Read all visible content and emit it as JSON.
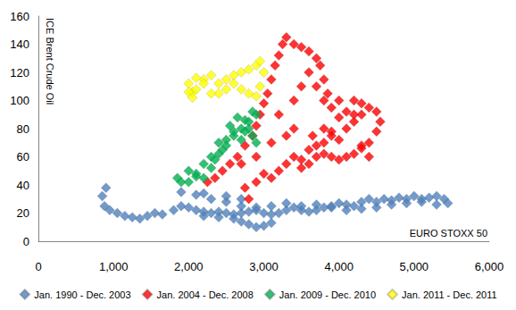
{
  "chart_data": {
    "type": "scatter",
    "x_label": "EURO STOXX 50",
    "y_label": "ICE Brent Crude Oil",
    "xlim": [
      0,
      6000
    ],
    "xticks": [
      0,
      1000,
      2000,
      3000,
      4000,
      5000,
      6000
    ],
    "ylim": [
      0,
      160
    ],
    "yticks": [
      0,
      20,
      40,
      60,
      80,
      100,
      120,
      140,
      160
    ],
    "grid": false,
    "legend": "bottom",
    "marker": "diamond",
    "series": [
      {
        "name": "Jan. 1990 - Dec. 2003",
        "color": "#4f81bd",
        "values": [
          [
            900,
            38
          ],
          [
            850,
            32
          ],
          [
            880,
            25
          ],
          [
            950,
            22
          ],
          [
            1050,
            20
          ],
          [
            1150,
            18
          ],
          [
            1250,
            17
          ],
          [
            1350,
            16
          ],
          [
            1450,
            18
          ],
          [
            1550,
            20
          ],
          [
            1650,
            19
          ],
          [
            1800,
            22
          ],
          [
            1900,
            25
          ],
          [
            2000,
            24
          ],
          [
            2100,
            22
          ],
          [
            2200,
            21
          ],
          [
            2300,
            20
          ],
          [
            2400,
            21
          ],
          [
            2500,
            20
          ],
          [
            2600,
            19
          ],
          [
            2700,
            20
          ],
          [
            2800,
            21
          ],
          [
            2900,
            22
          ],
          [
            3000,
            20
          ],
          [
            3100,
            19
          ],
          [
            3200,
            20
          ],
          [
            3300,
            22
          ],
          [
            3400,
            24
          ],
          [
            3500,
            22
          ],
          [
            3600,
            21
          ],
          [
            3700,
            22
          ],
          [
            3800,
            24
          ],
          [
            3900,
            25
          ],
          [
            4000,
            27
          ],
          [
            4100,
            26
          ],
          [
            4200,
            25
          ],
          [
            4300,
            28
          ],
          [
            4400,
            30
          ],
          [
            4500,
            28
          ],
          [
            4600,
            30
          ],
          [
            4700,
            29
          ],
          [
            4800,
            31
          ],
          [
            4900,
            30
          ],
          [
            5000,
            32
          ],
          [
            5100,
            30
          ],
          [
            5200,
            31
          ],
          [
            5300,
            32
          ],
          [
            5400,
            30
          ],
          [
            5450,
            27
          ],
          [
            5300,
            26
          ],
          [
            5100,
            28
          ],
          [
            4900,
            27
          ],
          [
            4700,
            26
          ],
          [
            4500,
            24
          ],
          [
            4300,
            23
          ],
          [
            4100,
            22
          ],
          [
            3900,
            24
          ],
          [
            3700,
            26
          ],
          [
            3500,
            25
          ],
          [
            3300,
            27
          ],
          [
            3100,
            25
          ],
          [
            2900,
            24
          ],
          [
            2700,
            25
          ],
          [
            2500,
            28
          ],
          [
            2300,
            30
          ],
          [
            2100,
            33
          ],
          [
            1900,
            35
          ],
          [
            2200,
            34
          ],
          [
            2500,
            32
          ],
          [
            2700,
            30
          ],
          [
            2800,
            12
          ],
          [
            2900,
            10
          ],
          [
            3000,
            11
          ],
          [
            3100,
            13
          ],
          [
            2700,
            14
          ],
          [
            2600,
            16
          ],
          [
            2400,
            17
          ],
          [
            2200,
            18
          ]
        ]
      },
      {
        "name": "Jan. 2004 - Dec. 2008",
        "color": "#ff0000",
        "values": [
          [
            2800,
            30
          ],
          [
            2750,
            38
          ],
          [
            2900,
            42
          ],
          [
            3000,
            48
          ],
          [
            3100,
            45
          ],
          [
            3200,
            50
          ],
          [
            3300,
            55
          ],
          [
            3400,
            60
          ],
          [
            3500,
            58
          ],
          [
            3600,
            65
          ],
          [
            3700,
            68
          ],
          [
            3800,
            70
          ],
          [
            3900,
            75
          ],
          [
            4000,
            72
          ],
          [
            4100,
            80
          ],
          [
            4200,
            85
          ],
          [
            4300,
            90
          ],
          [
            4400,
            95
          ],
          [
            4500,
            92
          ],
          [
            4550,
            85
          ],
          [
            4500,
            78
          ],
          [
            4400,
            70
          ],
          [
            4300,
            66
          ],
          [
            4200,
            62
          ],
          [
            4100,
            60
          ],
          [
            4000,
            58
          ],
          [
            3900,
            60
          ],
          [
            3800,
            62
          ],
          [
            3700,
            60
          ],
          [
            3600,
            55
          ],
          [
            3500,
            52
          ],
          [
            3650,
            75
          ],
          [
            3800,
            80
          ],
          [
            3900,
            78
          ],
          [
            4000,
            88
          ],
          [
            4100,
            92
          ],
          [
            4200,
            90
          ],
          [
            4300,
            68
          ],
          [
            4400,
            60
          ],
          [
            3900,
            95
          ],
          [
            3850,
            105
          ],
          [
            3800,
            115
          ],
          [
            3750,
            125
          ],
          [
            3700,
            130
          ],
          [
            3600,
            135
          ],
          [
            3500,
            138
          ],
          [
            3400,
            140
          ],
          [
            3300,
            145
          ],
          [
            3250,
            140
          ],
          [
            3200,
            132
          ],
          [
            3150,
            125
          ],
          [
            3100,
            115
          ],
          [
            3050,
            105
          ],
          [
            3000,
            98
          ],
          [
            2950,
            90
          ],
          [
            2900,
            82
          ],
          [
            2850,
            75
          ],
          [
            2750,
            68
          ],
          [
            2650,
            60
          ],
          [
            2550,
            55
          ],
          [
            2450,
            50
          ],
          [
            2350,
            45
          ],
          [
            2250,
            42
          ],
          [
            2700,
            55
          ],
          [
            2900,
            60
          ],
          [
            3100,
            70
          ],
          [
            3300,
            75
          ],
          [
            3400,
            80
          ],
          [
            3200,
            90
          ],
          [
            3400,
            100
          ],
          [
            3500,
            110
          ],
          [
            3600,
            120
          ],
          [
            3700,
            110
          ],
          [
            3800,
            100
          ],
          [
            4000,
            100
          ],
          [
            4200,
            100
          ],
          [
            4300,
            98
          ]
        ]
      },
      {
        "name": "Jan. 2009 - Dec. 2010",
        "color": "#00b050",
        "values": [
          [
            1850,
            45
          ],
          [
            1900,
            42
          ],
          [
            2000,
            50
          ],
          [
            2100,
            48
          ],
          [
            2200,
            55
          ],
          [
            2300,
            60
          ],
          [
            2400,
            70
          ],
          [
            2450,
            65
          ],
          [
            2500,
            72
          ],
          [
            2600,
            78
          ],
          [
            2700,
            80
          ],
          [
            2750,
            86
          ],
          [
            2800,
            85
          ],
          [
            2850,
            92
          ],
          [
            2900,
            90
          ],
          [
            2850,
            75
          ],
          [
            2700,
            72
          ],
          [
            2600,
            75
          ],
          [
            2500,
            68
          ],
          [
            2300,
            52
          ],
          [
            2100,
            46
          ],
          [
            2000,
            42
          ],
          [
            2200,
            45
          ],
          [
            2400,
            62
          ],
          [
            2800,
            80
          ],
          [
            2900,
            70
          ],
          [
            2750,
            78
          ],
          [
            2650,
            88
          ],
          [
            2550,
            82
          ],
          [
            2350,
            58
          ]
        ]
      },
      {
        "name": "Jan. 2011 - Dec. 2011",
        "color": "#ffff00",
        "values": [
          [
            2000,
            112
          ],
          [
            2050,
            106
          ],
          [
            2100,
            108
          ],
          [
            2200,
            115
          ],
          [
            2300,
            118
          ],
          [
            2400,
            112
          ],
          [
            2500,
            115
          ],
          [
            2600,
            118
          ],
          [
            2700,
            120
          ],
          [
            2800,
            122
          ],
          [
            2900,
            125
          ],
          [
            2950,
            128
          ],
          [
            3000,
            120
          ],
          [
            2950,
            110
          ],
          [
            2900,
            103
          ],
          [
            2800,
            105
          ],
          [
            2700,
            108
          ],
          [
            2600,
            112
          ],
          [
            2500,
            108
          ],
          [
            2400,
            105
          ],
          [
            2300,
            105
          ],
          [
            2200,
            112
          ],
          [
            2100,
            116
          ],
          [
            2000,
            106
          ],
          [
            2050,
            102
          ]
        ]
      }
    ]
  }
}
